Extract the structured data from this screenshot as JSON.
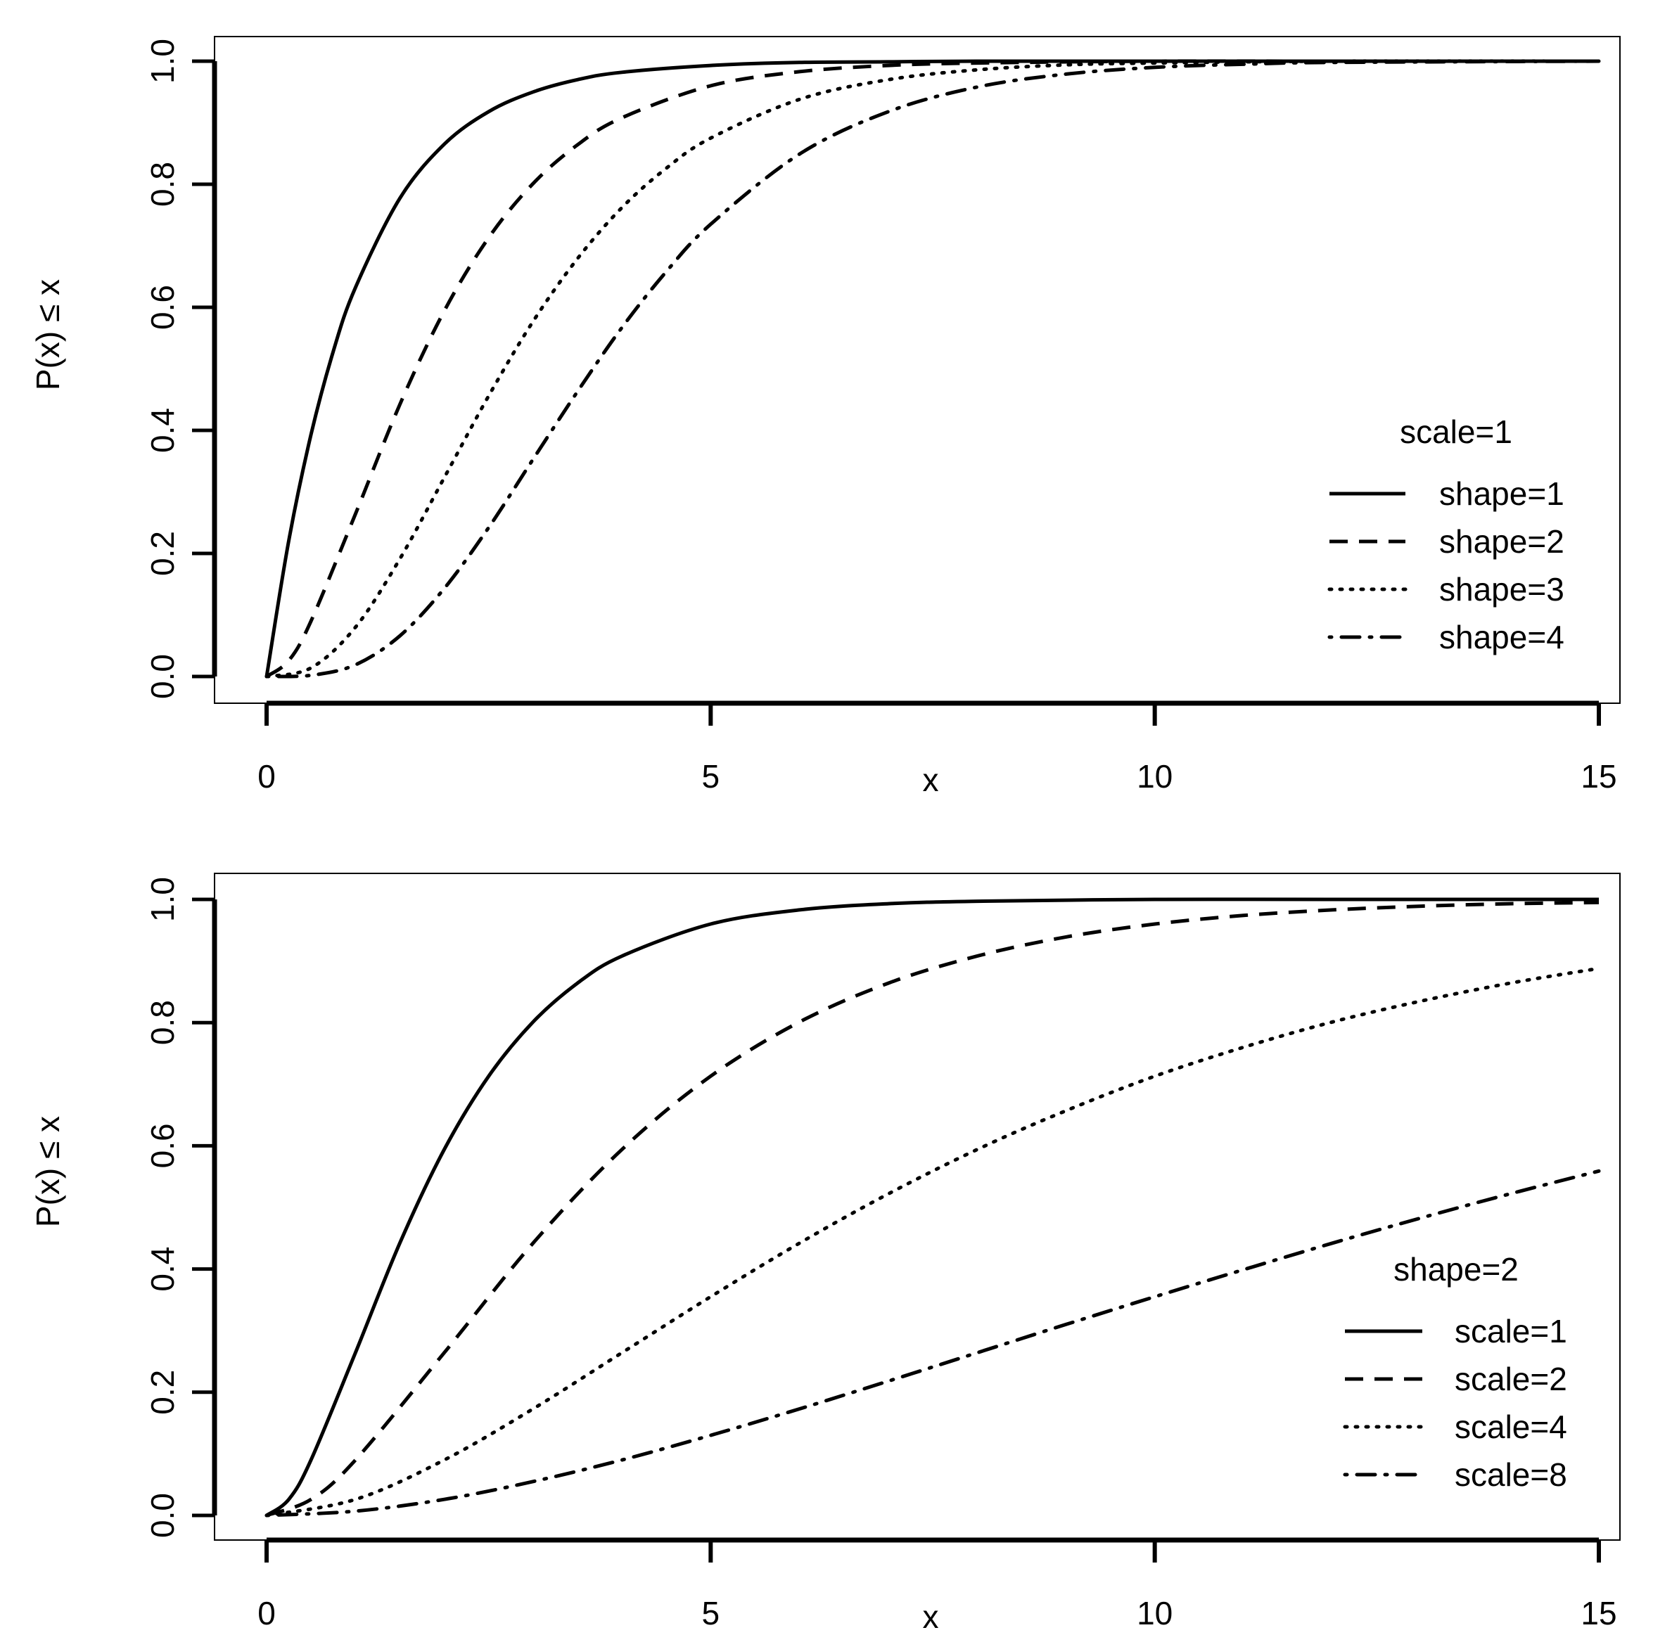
{
  "chart_data": [
    {
      "type": "line",
      "title": "",
      "xlabel": "x",
      "ylabel": "P(x) ≤ x",
      "xlim": [
        0,
        15
      ],
      "ylim": [
        0,
        1
      ],
      "xticks": [
        "0",
        "5",
        "10",
        "15"
      ],
      "yticks": [
        "0.0",
        "0.2",
        "0.4",
        "0.6",
        "0.8",
        "1.0"
      ],
      "legend_title": "scale=1",
      "legend_position": "right",
      "series": [
        {
          "name": "shape=1",
          "style": "solid",
          "x": [
            0,
            0.25,
            0.5,
            0.75,
            1,
            1.5,
            2,
            2.5,
            3,
            3.5,
            4,
            5,
            6,
            7,
            8,
            10,
            12,
            15
          ],
          "values": [
            0,
            0.221,
            0.393,
            0.528,
            0.632,
            0.777,
            0.865,
            0.918,
            0.95,
            0.97,
            0.982,
            0.993,
            0.998,
            0.999,
            1.0,
            1.0,
            1.0,
            1.0
          ]
        },
        {
          "name": "shape=2",
          "style": "dashed",
          "x": [
            0,
            0.25,
            0.5,
            1,
            1.5,
            2,
            2.5,
            3,
            3.5,
            4,
            5,
            6,
            7,
            8,
            10,
            12,
            15
          ],
          "values": [
            0,
            0.026,
            0.09,
            0.264,
            0.442,
            0.594,
            0.713,
            0.801,
            0.864,
            0.908,
            0.96,
            0.983,
            0.993,
            0.997,
            1.0,
            1.0,
            1.0
          ]
        },
        {
          "name": "shape=3",
          "style": "dotted",
          "x": [
            0,
            0.5,
            1,
            1.5,
            2,
            2.5,
            3,
            3.5,
            4,
            4.5,
            5,
            6,
            7,
            8,
            9,
            10,
            12,
            15
          ],
          "values": [
            0,
            0.014,
            0.08,
            0.191,
            0.323,
            0.456,
            0.577,
            0.679,
            0.762,
            0.826,
            0.875,
            0.938,
            0.97,
            0.986,
            0.994,
            0.997,
            1.0,
            1.0
          ]
        },
        {
          "name": "shape=4",
          "style": "dotdash",
          "x": [
            0,
            0.5,
            1,
            1.5,
            2,
            2.5,
            3,
            3.5,
            4,
            4.5,
            5,
            6,
            7,
            8,
            9,
            10,
            11,
            12,
            15
          ],
          "values": [
            0,
            0.002,
            0.019,
            0.066,
            0.143,
            0.242,
            0.353,
            0.463,
            0.567,
            0.658,
            0.735,
            0.849,
            0.918,
            0.958,
            0.979,
            0.99,
            0.995,
            0.998,
            1.0
          ]
        }
      ]
    },
    {
      "type": "line",
      "title": "",
      "xlabel": "x",
      "ylabel": "P(x) ≤ x",
      "xlim": [
        0,
        15
      ],
      "ylim": [
        0,
        1
      ],
      "xticks": [
        "0",
        "5",
        "10",
        "15"
      ],
      "yticks": [
        "0.0",
        "0.2",
        "0.4",
        "0.6",
        "0.8",
        "1.0"
      ],
      "legend_title": "shape=2",
      "legend_position": "right",
      "series": [
        {
          "name": "scale=1",
          "style": "solid",
          "x": [
            0,
            0.25,
            0.5,
            1,
            1.5,
            2,
            2.5,
            3,
            3.5,
            4,
            5,
            6,
            7,
            8,
            10,
            12,
            15
          ],
          "values": [
            0,
            0.026,
            0.09,
            0.264,
            0.442,
            0.594,
            0.713,
            0.801,
            0.864,
            0.908,
            0.96,
            0.983,
            0.993,
            0.997,
            1.0,
            1.0,
            1.0
          ]
        },
        {
          "name": "scale=2",
          "style": "dashed",
          "x": [
            0,
            0.5,
            1,
            2,
            3,
            4,
            5,
            6,
            7,
            8,
            9,
            10,
            11,
            12,
            13,
            14,
            15
          ],
          "values": [
            0,
            0.026,
            0.09,
            0.264,
            0.442,
            0.594,
            0.713,
            0.801,
            0.864,
            0.908,
            0.939,
            0.96,
            0.974,
            0.983,
            0.989,
            0.993,
            0.995
          ]
        },
        {
          "name": "scale=4",
          "style": "dotted",
          "x": [
            0,
            1,
            2,
            3,
            4,
            5,
            6,
            7,
            8,
            9,
            10,
            11,
            12,
            13,
            14,
            15
          ],
          "values": [
            0,
            0.026,
            0.09,
            0.173,
            0.264,
            0.355,
            0.442,
            0.522,
            0.594,
            0.657,
            0.713,
            0.76,
            0.801,
            0.835,
            0.864,
            0.888
          ]
        },
        {
          "name": "scale=8",
          "style": "dotdash",
          "x": [
            0,
            1,
            2,
            3,
            4,
            5,
            6,
            7,
            8,
            9,
            10,
            11,
            12,
            13,
            14,
            15
          ],
          "values": [
            0,
            0.007,
            0.026,
            0.055,
            0.09,
            0.13,
            0.173,
            0.218,
            0.264,
            0.31,
            0.355,
            0.399,
            0.442,
            0.483,
            0.522,
            0.559
          ]
        }
      ]
    }
  ]
}
